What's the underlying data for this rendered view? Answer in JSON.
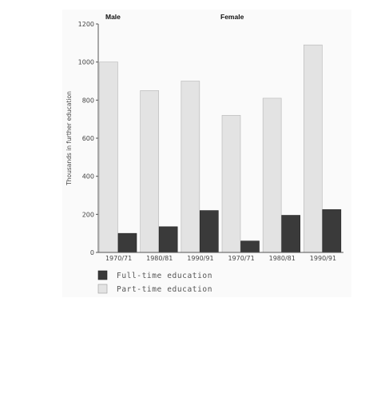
{
  "chart_data": {
    "type": "bar",
    "ylabel": "Thousands in further education",
    "ylim": [
      0,
      1200
    ],
    "yticks": [
      0,
      200,
      400,
      600,
      800,
      1000,
      1200
    ],
    "groups": [
      "Male",
      "Female"
    ],
    "categories": [
      "1970/71",
      "1980/81",
      "1990/91",
      "1970/71",
      "1980/81",
      "1990/91"
    ],
    "series": [
      {
        "name": "Full-time education",
        "values": [
          100,
          135,
          220,
          60,
          195,
          225
        ],
        "color": "#3a3a3a"
      },
      {
        "name": "Part-time education",
        "values": [
          1000,
          850,
          900,
          720,
          810,
          1090
        ],
        "color": "#e3e3e3"
      }
    ],
    "grid": false,
    "legend": "bottom-left"
  }
}
